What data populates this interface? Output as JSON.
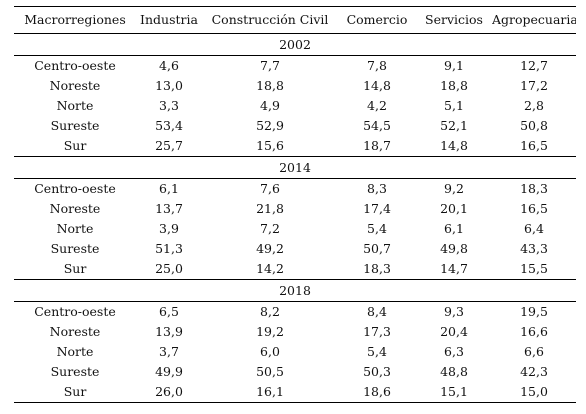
{
  "headers": [
    "Macrorregiones",
    "Industria",
    "Construcción Civil",
    "Comercio",
    "Servicios",
    "Agropecuaria"
  ],
  "sections": [
    {
      "year": "2002",
      "rows": [
        {
          "region": "Centro-oeste",
          "values": [
            "4,6",
            "7,7",
            "7,8",
            "9,1",
            "12,7"
          ]
        },
        {
          "region": "Noreste",
          "values": [
            "13,0",
            "18,8",
            "14,8",
            "18,8",
            "17,2"
          ]
        },
        {
          "region": "Norte",
          "values": [
            "3,3",
            "4,9",
            "4,2",
            "5,1",
            "2,8"
          ]
        },
        {
          "region": "Sureste",
          "values": [
            "53,4",
            "52,9",
            "54,5",
            "52,1",
            "50,8"
          ]
        },
        {
          "region": "Sur",
          "values": [
            "25,7",
            "15,6",
            "18,7",
            "14,8",
            "16,5"
          ]
        }
      ]
    },
    {
      "year": "2014",
      "rows": [
        {
          "region": "Centro-oeste",
          "values": [
            "6,1",
            "7,6",
            "8,3",
            "9,2",
            "18,3"
          ]
        },
        {
          "region": "Noreste",
          "values": [
            "13,7",
            "21,8",
            "17,4",
            "20,1",
            "16,5"
          ]
        },
        {
          "region": "Norte",
          "values": [
            "3,9",
            "7,2",
            "5,4",
            "6,1",
            "6,4"
          ]
        },
        {
          "region": "Sureste",
          "values": [
            "51,3",
            "49,2",
            "50,7",
            "49,8",
            "43,3"
          ]
        },
        {
          "region": "Sur",
          "values": [
            "25,0",
            "14,2",
            "18,3",
            "14,7",
            "15,5"
          ]
        }
      ]
    },
    {
      "year": "2018",
      "rows": [
        {
          "region": "Centro-oeste",
          "values": [
            "6,5",
            "8,2",
            "8,4",
            "9,3",
            "19,5"
          ]
        },
        {
          "region": "Noreste",
          "values": [
            "13,9",
            "19,2",
            "17,3",
            "20,4",
            "16,6"
          ]
        },
        {
          "region": "Norte",
          "values": [
            "3,7",
            "6,0",
            "5,4",
            "6,3",
            "6,6"
          ]
        },
        {
          "region": "Sureste",
          "values": [
            "49,9",
            "50,5",
            "50,3",
            "48,8",
            "42,3"
          ]
        },
        {
          "region": "Sur",
          "values": [
            "26,0",
            "16,1",
            "18,6",
            "15,1",
            "15,0"
          ]
        }
      ]
    }
  ]
}
